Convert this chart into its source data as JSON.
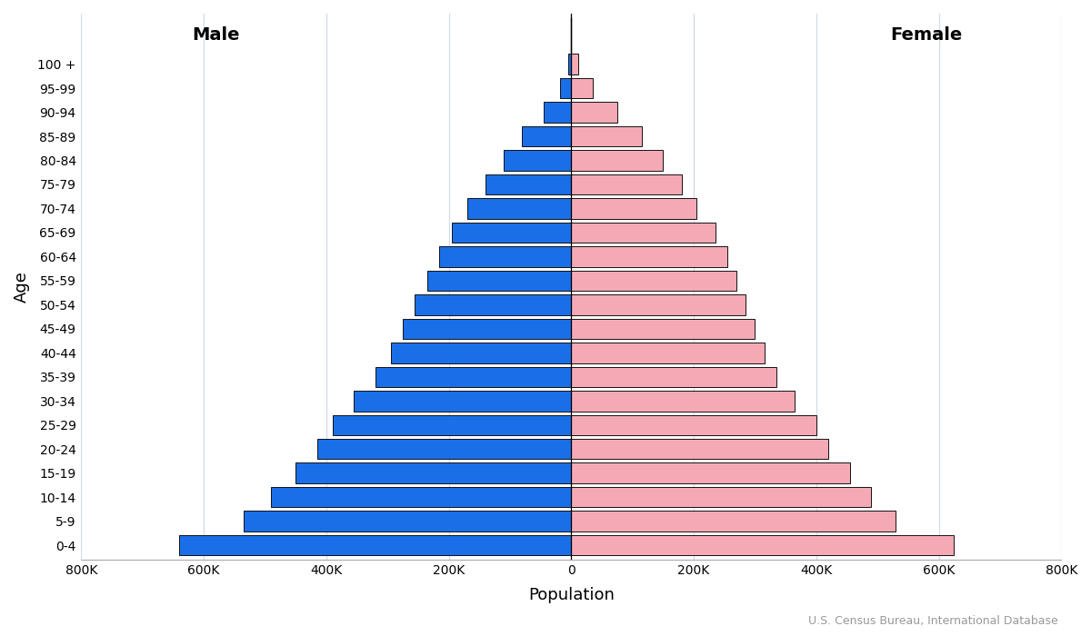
{
  "age_groups": [
    "0-4",
    "5-9",
    "10-14",
    "15-19",
    "20-24",
    "25-29",
    "30-34",
    "35-39",
    "40-44",
    "45-49",
    "50-54",
    "55-59",
    "60-64",
    "65-69",
    "70-74",
    "75-79",
    "80-84",
    "85-89",
    "90-94",
    "95-99",
    "100 +"
  ],
  "male": [
    640000,
    535000,
    490000,
    450000,
    415000,
    390000,
    355000,
    320000,
    295000,
    275000,
    255000,
    235000,
    215000,
    195000,
    170000,
    140000,
    110000,
    80000,
    45000,
    18000,
    5000
  ],
  "female": [
    625000,
    530000,
    490000,
    455000,
    420000,
    400000,
    365000,
    335000,
    315000,
    300000,
    285000,
    270000,
    255000,
    235000,
    205000,
    180000,
    150000,
    115000,
    75000,
    35000,
    12000
  ],
  "male_color": "#1a6fe8",
  "female_color": "#f4a9b5",
  "bar_edge_color": "#111111",
  "bar_linewidth": 0.7,
  "xlim_left": -800000,
  "xlim_right": 800000,
  "xticks": [
    -800000,
    -600000,
    -400000,
    -200000,
    0,
    200000,
    400000,
    600000,
    800000
  ],
  "xtick_labels": [
    "800K",
    "600K",
    "400K",
    "200K",
    "0",
    "200K",
    "400K",
    "600K",
    "800K"
  ],
  "xlabel": "Population",
  "ylabel": "Age",
  "male_label": "Male",
  "female_label": "Female",
  "source_text": "U.S. Census Bureau, International Database",
  "background_color": "#ffffff",
  "grid_color": "#d0dce8",
  "bar_height": 0.85,
  "tick_fontsize": 10,
  "axis_label_fontsize": 13,
  "gender_label_fontsize": 14
}
